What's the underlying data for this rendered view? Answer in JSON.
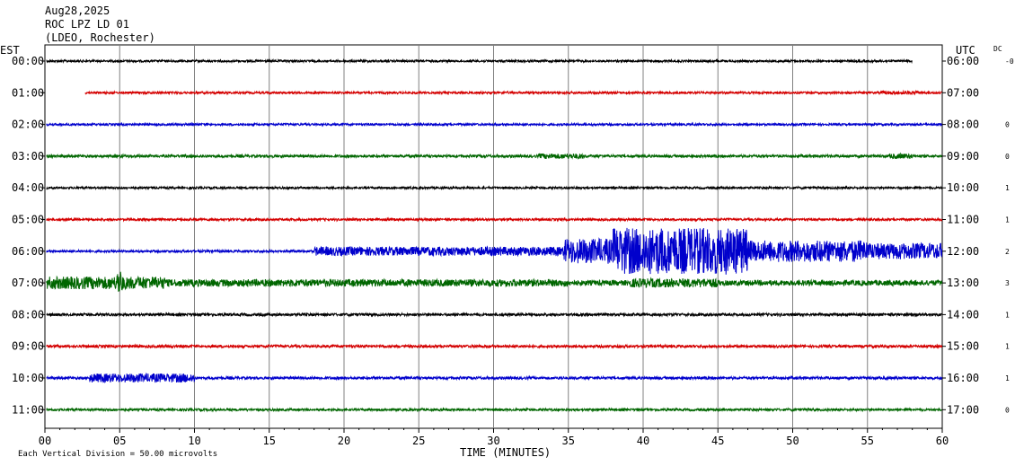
{
  "header": {
    "date": "Aug28,2025",
    "station": "ROC LPZ LD 01",
    "network": "(LDEO, Rochester)"
  },
  "axis_labels": {
    "left": "EST",
    "right": "UTC",
    "dc": "DC",
    "x": "TIME (MINUTES)"
  },
  "scale_note": "Each Vertical Division =   50.00 microvolts",
  "chart_data": {
    "type": "line",
    "title": "",
    "xlabel": "TIME (MINUTES)",
    "xlim": [
      0,
      60
    ],
    "x_ticks": [
      "00",
      "05",
      "10",
      "15",
      "20",
      "25",
      "30",
      "35",
      "40",
      "45",
      "50",
      "55",
      "60"
    ],
    "grid": true,
    "colors": [
      "#000000",
      "#d40000",
      "#0000cc",
      "#006600"
    ],
    "rows": [
      {
        "est": "00:00",
        "utc": "06:00",
        "dc": "-0",
        "start": 0.1,
        "end": 58.0,
        "base_amp": 1.2,
        "events": []
      },
      {
        "est": "01:00",
        "utc": "07:00",
        "dc": "",
        "start": 2.7,
        "end": 60,
        "base_amp": 1.2,
        "events": [
          {
            "start": 56.0,
            "end": 58.5,
            "amp": 2
          }
        ]
      },
      {
        "est": "02:00",
        "utc": "08:00",
        "dc": "0",
        "start": 0.1,
        "end": 60,
        "base_amp": 1.2,
        "events": []
      },
      {
        "est": "03:00",
        "utc": "09:00",
        "dc": "0",
        "start": 0.1,
        "end": 60,
        "base_amp": 1.5,
        "events": [
          {
            "start": 33,
            "end": 36,
            "amp": 3
          },
          {
            "start": 56.5,
            "end": 58,
            "amp": 3
          }
        ]
      },
      {
        "est": "04:00",
        "utc": "10:00",
        "dc": "1",
        "start": 0.1,
        "end": 60,
        "base_amp": 1.2,
        "events": []
      },
      {
        "est": "05:00",
        "utc": "11:00",
        "dc": "1",
        "start": 0.1,
        "end": 60,
        "base_amp": 1.3,
        "events": []
      },
      {
        "est": "06:00",
        "utc": "12:00",
        "dc": "2",
        "start": 0.1,
        "end": 60,
        "base_amp": 1.3,
        "events": [
          {
            "start": 18,
            "end": 35,
            "amp": 5
          },
          {
            "start": 34.7,
            "end": 38,
            "amp": 14
          },
          {
            "start": 38,
            "end": 47,
            "amp": 26
          },
          {
            "start": 47,
            "end": 55,
            "amp": 12
          },
          {
            "start": 55,
            "end": 60,
            "amp": 9
          }
        ]
      },
      {
        "est": "07:00",
        "utc": "13:00",
        "dc": "3",
        "start": 0.1,
        "end": 60,
        "base_amp": 3,
        "events": [
          {
            "start": 0,
            "end": 8,
            "amp": 7
          },
          {
            "start": 4.8,
            "end": 5.2,
            "amp": 14
          },
          {
            "start": 8,
            "end": 35,
            "amp": 4
          },
          {
            "start": 39,
            "end": 45,
            "amp": 5
          }
        ]
      },
      {
        "est": "08:00",
        "utc": "14:00",
        "dc": "1",
        "start": 0.1,
        "end": 60,
        "base_amp": 1.5,
        "events": []
      },
      {
        "est": "09:00",
        "utc": "15:00",
        "dc": "1",
        "start": 0.1,
        "end": 60,
        "base_amp": 1.5,
        "events": []
      },
      {
        "est": "10:00",
        "utc": "16:00",
        "dc": "1",
        "start": 0.1,
        "end": 60,
        "base_amp": 1.5,
        "events": [
          {
            "start": 3,
            "end": 10,
            "amp": 5
          }
        ]
      },
      {
        "est": "11:00",
        "utc": "17:00",
        "dc": "0",
        "start": 0.1,
        "end": 60,
        "base_amp": 1.3,
        "events": []
      }
    ]
  }
}
